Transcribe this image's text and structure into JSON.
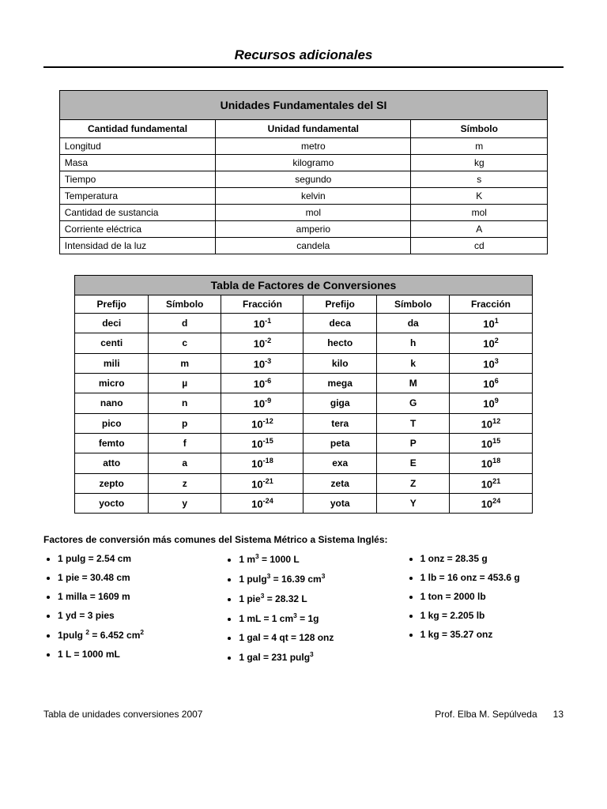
{
  "title": "Recursos adicionales",
  "table1": {
    "title": "Unidades Fundamentales del SI",
    "headers": [
      "Cantidad fundamental",
      "Unidad fundamental",
      "Símbolo"
    ],
    "rows": [
      [
        "Longitud",
        "metro",
        "m"
      ],
      [
        "Masa",
        "kilogramo",
        "kg"
      ],
      [
        "Tiempo",
        "segundo",
        "s"
      ],
      [
        "Temperatura",
        "kelvin",
        "K"
      ],
      [
        "Cantidad de sustancia",
        "mol",
        "mol"
      ],
      [
        "Corriente eléctrica",
        "amperio",
        "A"
      ],
      [
        "Intensidad de la luz",
        "candela",
        "cd"
      ]
    ],
    "col_widths": [
      "32%",
      "40%",
      "28%"
    ]
  },
  "table2": {
    "title": "Tabla de Factores de Conversiones",
    "headers": [
      "Prefijo",
      "Símbolo",
      "Fracción",
      "Prefijo",
      "Símbolo",
      "Fracción"
    ],
    "rows": [
      {
        "p1": "deci",
        "s1": "d",
        "e1": "-1",
        "p2": "deca",
        "s2": "da",
        "e2": "1"
      },
      {
        "p1": "centi",
        "s1": "c",
        "e1": "-2",
        "p2": "hecto",
        "s2": "h",
        "e2": "2"
      },
      {
        "p1": "mili",
        "s1": "m",
        "e1": "-3",
        "p2": "kilo",
        "s2": "k",
        "e2": "3"
      },
      {
        "p1": "micro",
        "s1": "µ",
        "e1": "-6",
        "p2": "mega",
        "s2": "M",
        "e2": "6"
      },
      {
        "p1": "nano",
        "s1": "n",
        "e1": "-9",
        "p2": "giga",
        "s2": "G",
        "e2": "9"
      },
      {
        "p1": "pico",
        "s1": "p",
        "e1": "-12",
        "p2": "tera",
        "s2": "T",
        "e2": "12"
      },
      {
        "p1": "femto",
        "s1": "f",
        "e1": "-15",
        "p2": "peta",
        "s2": "P",
        "e2": "15"
      },
      {
        "p1": "atto",
        "s1": "a",
        "e1": "-18",
        "p2": "exa",
        "s2": "E",
        "e2": "18"
      },
      {
        "p1": "zepto",
        "s1": "z",
        "e1": "-21",
        "p2": "zeta",
        "s2": "Z",
        "e2": "21"
      },
      {
        "p1": "yocto",
        "s1": "y",
        "e1": "-24",
        "p2": "yota",
        "s2": "Y",
        "e2": "24"
      }
    ],
    "col_widths": [
      "16%",
      "16%",
      "18%",
      "16%",
      "16%",
      "18%"
    ]
  },
  "conversions": {
    "label": "Factores de conversión más comunes  del Sistema Métrico a Sistema Inglés:",
    "col1": [
      "1 pulg = 2.54 cm",
      "1 pie = 30.48 cm",
      "1 milla = 1609 m",
      "1 yd = 3 pies",
      "1pulg <sup>2</sup> = 6.452 cm<sup>2</sup>",
      "1 L = 1000 mL"
    ],
    "col2": [
      "1 m<sup>3</sup> = 1000 L",
      "1 pulg<sup>3</sup> = 16.39 cm<sup>3</sup>",
      "1 pie<sup>3</sup> = 28.32 L",
      "1 mL = 1 cm<sup>3</sup> = 1g",
      "1 gal = 4 qt = 128 onz",
      "1 gal = 231 pulg<sup>3</sup>"
    ],
    "col3": [
      "1 onz = 28.35 g",
      "1 lb = 16 onz = 453.6 g",
      "1 ton = 2000 lb",
      "1 kg = 2.205 lb",
      "1 kg = 35.27 onz"
    ]
  },
  "footer": {
    "left": "Tabla de unidades conversiones 2007",
    "right_author": "Prof.   Elba M. Sepúlveda",
    "page": "13"
  },
  "colors": {
    "header_bg": "#b5b5b5",
    "border": "#000000",
    "text": "#000000",
    "bg": "#ffffff"
  }
}
